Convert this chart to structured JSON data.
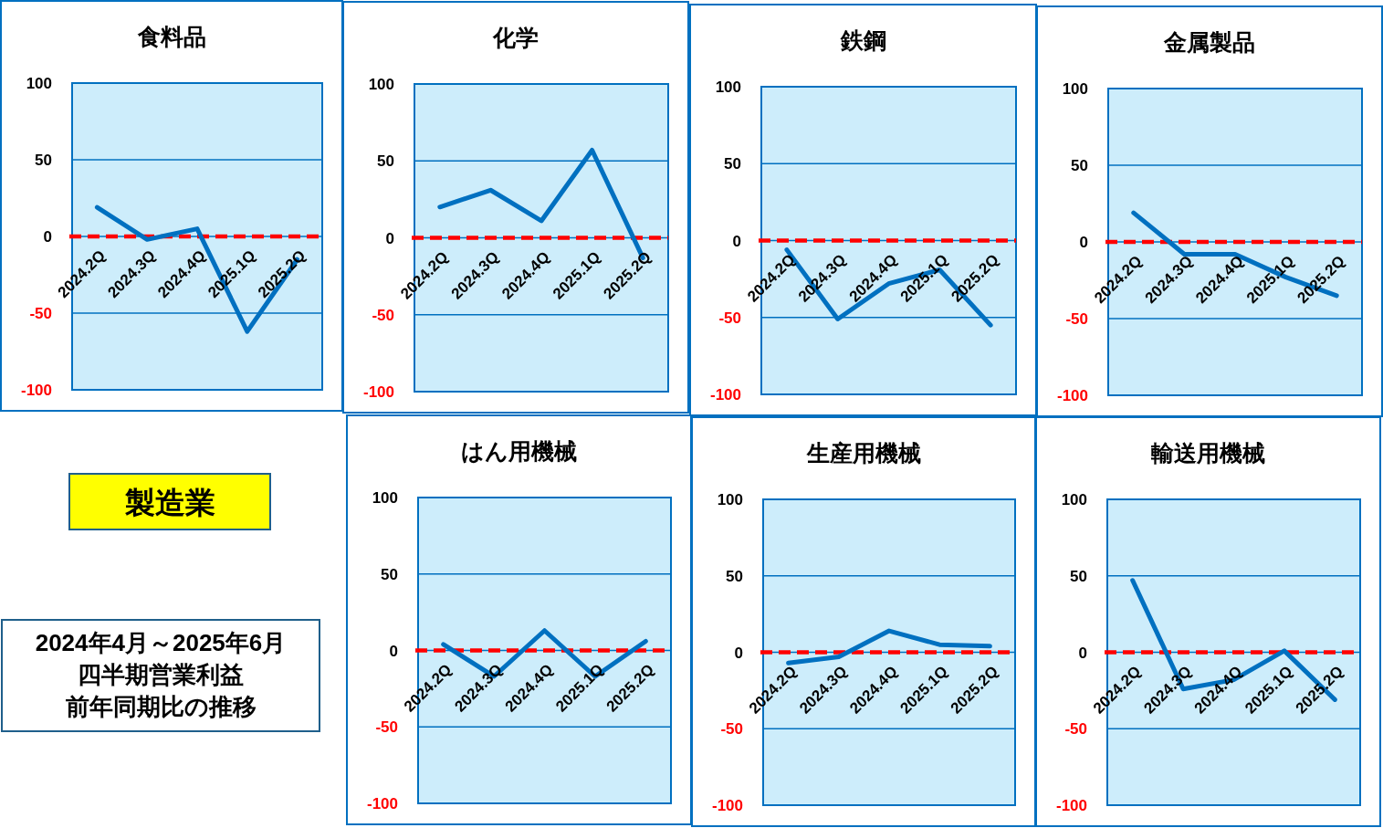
{
  "chart_data": [
    {
      "type": "line",
      "title": "食料品",
      "categories": [
        "2024.2Q",
        "2024.3Q",
        "2024.4Q",
        "2025.1Q",
        "2025.2Q"
      ],
      "values": [
        19,
        -2,
        5,
        -62,
        -15
      ],
      "color": "#0070c0",
      "ylim": [
        -100,
        100
      ],
      "yticks": [
        100,
        50,
        0,
        -50,
        -100
      ],
      "grid": "y",
      "ref_lines": [
        {
          "axis": "y",
          "value": 0,
          "color": "#ff0000",
          "line_style": "dashed"
        }
      ]
    },
    {
      "type": "line",
      "title": "化学",
      "categories": [
        "2024.2Q",
        "2024.3Q",
        "2024.4Q",
        "2025.1Q",
        "2025.2Q"
      ],
      "values": [
        20,
        31,
        11,
        57,
        -13
      ],
      "color": "#0070c0",
      "ylim": [
        -100,
        100
      ],
      "yticks": [
        100,
        50,
        0,
        -50,
        -100
      ],
      "grid": "y",
      "ref_lines": [
        {
          "axis": "y",
          "value": 0,
          "color": "#ff0000",
          "line_style": "dashed"
        }
      ]
    },
    {
      "type": "line",
      "title": "鉄鋼",
      "categories": [
        "2024.2Q",
        "2024.3Q",
        "2024.4Q",
        "2025.1Q",
        "2025.2Q"
      ],
      "values": [
        -6,
        -51,
        -28,
        -19,
        -55
      ],
      "color": "#0070c0",
      "ylim": [
        -100,
        100
      ],
      "yticks": [
        100,
        50,
        0,
        -50,
        -100
      ],
      "grid": "y",
      "ref_lines": [
        {
          "axis": "y",
          "value": 0,
          "color": "#ff0000",
          "line_style": "dashed"
        }
      ]
    },
    {
      "type": "line",
      "title": "金属製品",
      "categories": [
        "2024.2Q",
        "2024.3Q",
        "2024.4Q",
        "2025.1Q",
        "2025.2Q"
      ],
      "values": [
        19,
        -8,
        -8,
        -23,
        -35
      ],
      "color": "#0070c0",
      "ylim": [
        -100,
        100
      ],
      "yticks": [
        100,
        50,
        0,
        -50,
        -100
      ],
      "grid": "y",
      "ref_lines": [
        {
          "axis": "y",
          "value": 0,
          "color": "#ff0000",
          "line_style": "dashed"
        }
      ]
    },
    {
      "type": "other",
      "title": "製造業",
      "annotations": [
        "2024年4月～2025年6月",
        "四半期営業利益",
        "前年同期比の推移"
      ]
    },
    {
      "type": "line",
      "title": "はん用機械",
      "categories": [
        "2024.2Q",
        "2024.3Q",
        "2024.4Q",
        "2025.1Q",
        "2025.2Q"
      ],
      "values": [
        4,
        -17,
        13,
        -17,
        6
      ],
      "color": "#0070c0",
      "ylim": [
        -100,
        100
      ],
      "yticks": [
        100,
        50,
        0,
        -50,
        -100
      ],
      "grid": "y",
      "ref_lines": [
        {
          "axis": "y",
          "value": 0,
          "color": "#ff0000",
          "line_style": "dashed"
        }
      ]
    },
    {
      "type": "line",
      "title": "生産用機械",
      "categories": [
        "2024.2Q",
        "2024.3Q",
        "2024.4Q",
        "2025.1Q",
        "2025.2Q"
      ],
      "values": [
        -7,
        -3,
        14,
        5,
        4
      ],
      "color": "#0070c0",
      "ylim": [
        -100,
        100
      ],
      "yticks": [
        100,
        50,
        0,
        -50,
        -100
      ],
      "grid": "y",
      "ref_lines": [
        {
          "axis": "y",
          "value": 0,
          "color": "#ff0000",
          "line_style": "dashed"
        }
      ]
    },
    {
      "type": "line",
      "title": "輸送用機械",
      "categories": [
        "2024.2Q",
        "2024.3Q",
        "2024.4Q",
        "2025.1Q",
        "2025.2Q"
      ],
      "values": [
        47,
        -24,
        -18,
        1,
        -31
      ],
      "color": "#0070c0",
      "ylim": [
        -100,
        100
      ],
      "yticks": [
        100,
        50,
        0,
        -50,
        -100
      ],
      "grid": "y",
      "ref_lines": [
        {
          "axis": "y",
          "value": 0,
          "color": "#ff0000",
          "line_style": "dashed"
        }
      ]
    }
  ]
}
